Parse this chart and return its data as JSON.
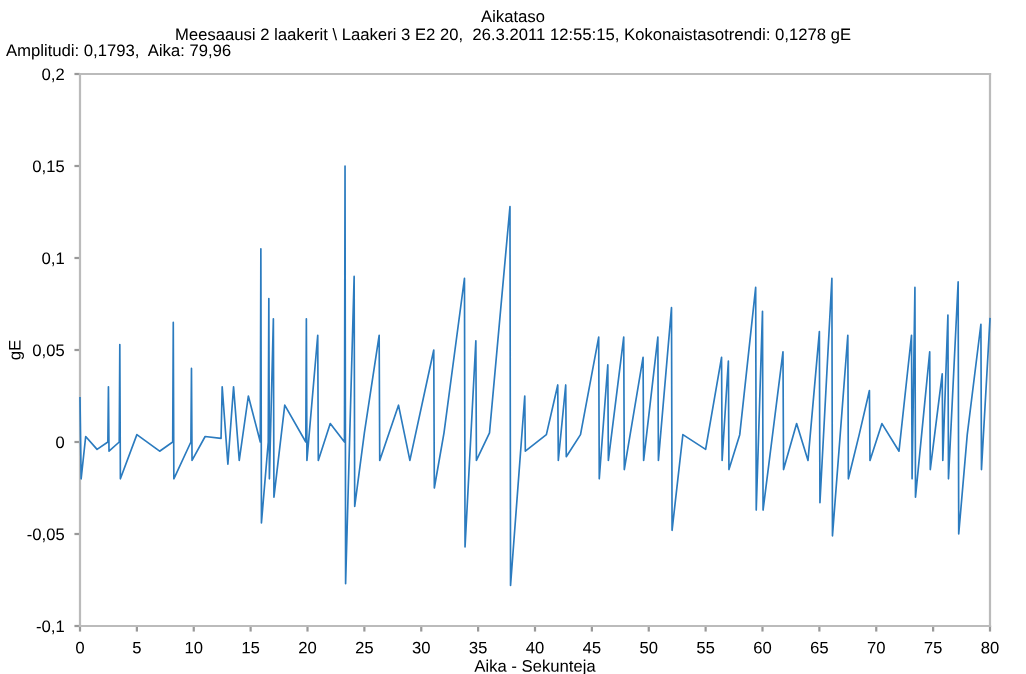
{
  "chart_data": {
    "type": "line",
    "title": "Aikataso",
    "subtitle": "Meesaausi 2 laakerit \\ Laakeri 3 E2 20,  26.3.2011 12:55:15, Kokonaistasotrendi: 0,1278 gE",
    "annotations": [
      "Amplitudi: 0,1793,  Aika: 79,96"
    ],
    "xlabel": "Aika - Sekunteja",
    "ylabel": "gE",
    "x": [
      0,
      0.1,
      0.5,
      1.5,
      2.45,
      2.5,
      2.55,
      3.45,
      3.5,
      3.55,
      5,
      7,
      8.15,
      8.2,
      8.25,
      9.75,
      9.8,
      9.85,
      11,
      12.4,
      12.5,
      13,
      13.5,
      14,
      14.8,
      15.85,
      15.9,
      15.95,
      16.55,
      16.6,
      16.65,
      17,
      17.05,
      18,
      19.85,
      19.9,
      19.95,
      20.9,
      20.95,
      22,
      23.25,
      23.3,
      23.35,
      24.1,
      24.15,
      25,
      26.3,
      26.35,
      28,
      29,
      31.1,
      31.15,
      32,
      33.8,
      33.85,
      34.8,
      34.85,
      36,
      37.8,
      37.85,
      39.1,
      39.15,
      41,
      42,
      42.05,
      42.7,
      42.75,
      44,
      45.6,
      45.65,
      46.4,
      46.45,
      47.8,
      47.85,
      49.5,
      49.55,
      50.8,
      50.85,
      52,
      52.05,
      53,
      55,
      56.4,
      56.45,
      57,
      57.05,
      58,
      59.4,
      59.45,
      60,
      60.05,
      61.8,
      61.85,
      63,
      64,
      65,
      65.05,
      66.1,
      66.15,
      67.5,
      67.55,
      68.5,
      69.4,
      69.45,
      70.5,
      72,
      73.1,
      73.15,
      73.4,
      73.45,
      74.7,
      74.75,
      75.8,
      75.85,
      76.3,
      76.35,
      77.2,
      77.25,
      78,
      79.2,
      79.25,
      80
    ],
    "series": [
      {
        "color": "#2b7bbf",
        "values": [
          0.024,
          -0.02,
          0.003,
          -0.004,
          0,
          0.03,
          -0.005,
          0,
          0.053,
          -0.02,
          0.004,
          -0.005,
          0,
          0.065,
          -0.02,
          0,
          0.04,
          -0.01,
          0.003,
          0.002,
          0.03,
          -0.012,
          0.03,
          -0.01,
          0.025,
          0,
          0.105,
          -0.044,
          0,
          0.078,
          -0.02,
          0.067,
          -0.03,
          0.02,
          0,
          0.067,
          -0.01,
          0.058,
          -0.01,
          0.01,
          0,
          0.15,
          -0.077,
          0.09,
          -0.035,
          0.005,
          0.058,
          -0.01,
          0.02,
          -0.01,
          0.05,
          -0.025,
          0.005,
          0.089,
          -0.057,
          0.055,
          -0.01,
          0.005,
          0.128,
          -0.078,
          0.025,
          -0.005,
          0.004,
          0.031,
          -0.01,
          0.031,
          -0.008,
          0.004,
          0.057,
          -0.02,
          0.042,
          -0.01,
          0.057,
          -0.015,
          0.046,
          -0.01,
          0.057,
          -0.01,
          0.073,
          -0.048,
          0.004,
          -0.004,
          0.046,
          -0.01,
          0.044,
          -0.015,
          0.004,
          0.084,
          -0.037,
          0.071,
          -0.037,
          0.049,
          -0.015,
          0.01,
          -0.01,
          0.06,
          -0.033,
          0.089,
          -0.051,
          0.058,
          -0.02,
          0.004,
          0.028,
          -0.01,
          0.01,
          -0.005,
          0.058,
          -0.02,
          0.084,
          -0.03,
          0.049,
          -0.015,
          0.037,
          -0.01,
          0.069,
          -0.02,
          0.087,
          -0.05,
          0.004,
          0.064,
          -0.015,
          0.067
        ]
      }
    ],
    "xlim": [
      0,
      80
    ],
    "xticks": [
      0,
      5,
      10,
      15,
      20,
      25,
      30,
      35,
      40,
      45,
      50,
      55,
      60,
      65,
      70,
      75,
      80
    ],
    "ylim": [
      -0.1,
      0.2
    ],
    "yticks": [
      {
        "value": -0.1,
        "label": "-0,1"
      },
      {
        "value": -0.05,
        "label": "-0,05"
      },
      {
        "value": 0,
        "label": "0"
      },
      {
        "value": 0.05,
        "label": "0,05"
      },
      {
        "value": 0.1,
        "label": "0,1"
      },
      {
        "value": 0.15,
        "label": "0,15"
      },
      {
        "value": 0.2,
        "label": "0,2"
      }
    ],
    "grid": false,
    "legend": false,
    "line_style": "solid",
    "marker": "none"
  }
}
